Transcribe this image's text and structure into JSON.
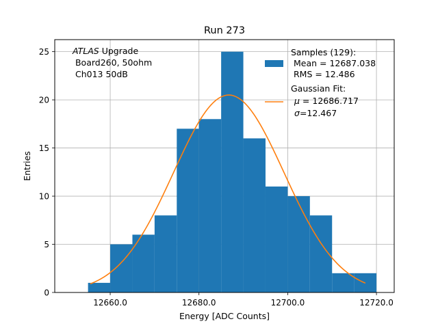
{
  "chart_data": {
    "type": "histogram",
    "title": "Run 273",
    "xlabel": "Energy [ADC Counts]",
    "ylabel": "Entries",
    "xlim": [
      12647.5,
      12724.0
    ],
    "ylim": [
      0,
      26.25
    ],
    "xticks": [
      12660.0,
      12680.0,
      12700.0,
      12720.0
    ],
    "xtick_labels": [
      "12660.0",
      "12680.0",
      "12700.0",
      "12720.0"
    ],
    "yticks": [
      0,
      5,
      10,
      15,
      20,
      25
    ],
    "ytick_labels": [
      "0",
      "5",
      "10",
      "15",
      "20",
      "25"
    ],
    "grid": true,
    "bar_color": "#1f77b4",
    "fit_color": "#ff7f0e",
    "bins": [
      {
        "x0": 12655,
        "x1": 12660,
        "value": 1
      },
      {
        "x0": 12660,
        "x1": 12665,
        "value": 5
      },
      {
        "x0": 12665,
        "x1": 12670,
        "value": 6
      },
      {
        "x0": 12670,
        "x1": 12675,
        "value": 8
      },
      {
        "x0": 12675,
        "x1": 12680,
        "value": 17
      },
      {
        "x0": 12680,
        "x1": 12685,
        "value": 18
      },
      {
        "x0": 12685,
        "x1": 12690,
        "value": 25
      },
      {
        "x0": 12690,
        "x1": 12695,
        "value": 16
      },
      {
        "x0": 12695,
        "x1": 12700,
        "value": 11
      },
      {
        "x0": 12700,
        "x1": 12705,
        "value": 10
      },
      {
        "x0": 12705,
        "x1": 12710,
        "value": 8
      },
      {
        "x0": 12710,
        "x1": 12715,
        "value": 2
      },
      {
        "x0": 12715,
        "x1": 12720,
        "value": 2
      }
    ],
    "fit": {
      "type": "gaussian",
      "mu": 12686.717,
      "sigma": 12.467,
      "amplitude": 20.5,
      "x_range": [
        12655.5,
        12717.5
      ]
    },
    "annotation": {
      "line1_italic": "ATLAS",
      "line1_rest": " Upgrade",
      "line2": " Board260, 50ohm",
      "line3": " Ch013 50dB"
    },
    "legend": {
      "placement": "top-right",
      "samples": {
        "line1": "Samples (129):",
        "line2": " Mean = 12687.038",
        "line3": " RMS = 12.486"
      },
      "fit": {
        "line1": "Gaussian Fit:",
        "mu_symbol": "μ",
        "mu_text": " = 12686.717",
        "sigma_symbol": "σ",
        "sigma_text": "=12.467"
      }
    }
  }
}
